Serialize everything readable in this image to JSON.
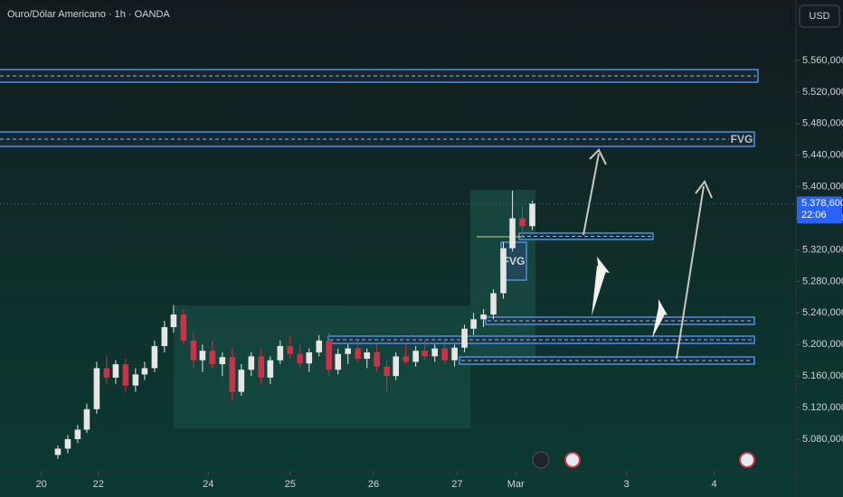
{
  "chart_data": {
    "type": "candlestick",
    "title": "Ouro/Dólar Americano · 1h · OANDA",
    "currency": "USD",
    "up_color": "#e6e6e6",
    "down_color": "#c93248",
    "grid": false,
    "xlim": [
      0,
      9.63
    ],
    "xticks": [
      {
        "value": 0.5,
        "label": "20"
      },
      {
        "value": 1.19,
        "label": "22"
      },
      {
        "value": 2.52,
        "label": "24"
      },
      {
        "value": 3.51,
        "label": "25"
      },
      {
        "value": 4.52,
        "label": "26"
      },
      {
        "value": 5.53,
        "label": "27"
      },
      {
        "value": 6.24,
        "label": "Mar"
      },
      {
        "value": 7.58,
        "label": "3"
      },
      {
        "value": 8.64,
        "label": "4"
      }
    ],
    "ylim": [
      5.04,
      5.62
    ],
    "yticks": [
      {
        "value": 5.08,
        "label": "5.080,000"
      },
      {
        "value": 5.12,
        "label": "5.120,000"
      },
      {
        "value": 5.16,
        "label": "5.160,000"
      },
      {
        "value": 5.2,
        "label": "5.200,000"
      },
      {
        "value": 5.24,
        "label": "5.240,000"
      },
      {
        "value": 5.28,
        "label": "5.280,000"
      },
      {
        "value": 5.32,
        "label": "5.320,000"
      },
      {
        "value": 5.36,
        "label": "5.360,000"
      },
      {
        "value": 5.4,
        "label": "5.400,000"
      },
      {
        "value": 5.44,
        "label": "5.440,000"
      },
      {
        "value": 5.48,
        "label": "5.480,000"
      },
      {
        "value": 5.52,
        "label": "5.520,000"
      },
      {
        "value": 5.56,
        "label": "5.560,000"
      }
    ],
    "last_price": {
      "value": 5.3786,
      "label": "5.378,600"
    },
    "countdown": "22:06",
    "annotations": [
      "FVG",
      "FVG"
    ],
    "x": [
      0.7,
      0.82,
      0.94,
      1.05,
      1.17,
      1.29,
      1.4,
      1.52,
      1.64,
      1.75,
      1.87,
      1.99,
      2.1,
      2.22,
      2.34,
      2.45,
      2.57,
      2.69,
      2.81,
      2.92,
      3.04,
      3.16,
      3.27,
      3.39,
      3.51,
      3.63,
      3.74,
      3.86,
      3.98,
      4.09,
      4.21,
      4.33,
      4.44,
      4.56,
      4.68,
      4.79,
      4.91,
      5.03,
      5.14,
      5.26,
      5.38,
      5.5,
      5.62,
      5.73,
      5.85,
      5.97,
      6.09,
      6.2,
      6.32,
      6.44
    ],
    "open": [
      5.06,
      5.068,
      5.08,
      5.092,
      5.118,
      5.17,
      5.158,
      5.175,
      5.148,
      5.162,
      5.17,
      5.198,
      5.222,
      5.238,
      5.205,
      5.18,
      5.192,
      5.175,
      5.184,
      5.14,
      5.168,
      5.185,
      5.158,
      5.18,
      5.198,
      5.188,
      5.176,
      5.19,
      5.205,
      5.168,
      5.188,
      5.195,
      5.182,
      5.19,
      5.172,
      5.16,
      5.185,
      5.178,
      5.192,
      5.185,
      5.195,
      5.18,
      5.196,
      5.22,
      5.232,
      5.238,
      5.265,
      5.322,
      5.36,
      5.35
    ],
    "high": [
      5.072,
      5.085,
      5.098,
      5.125,
      5.178,
      5.185,
      5.18,
      5.182,
      5.17,
      5.178,
      5.205,
      5.23,
      5.25,
      5.245,
      5.215,
      5.2,
      5.205,
      5.19,
      5.195,
      5.175,
      5.19,
      5.195,
      5.185,
      5.205,
      5.21,
      5.2,
      5.195,
      5.212,
      5.215,
      5.195,
      5.2,
      5.205,
      5.195,
      5.2,
      5.18,
      5.19,
      5.2,
      5.198,
      5.205,
      5.2,
      5.205,
      5.2,
      5.225,
      5.24,
      5.245,
      5.27,
      5.33,
      5.395,
      5.375,
      5.382
    ],
    "low": [
      5.055,
      5.062,
      5.075,
      5.088,
      5.112,
      5.15,
      5.15,
      5.14,
      5.14,
      5.155,
      5.165,
      5.19,
      5.215,
      5.2,
      5.17,
      5.165,
      5.17,
      5.16,
      5.128,
      5.135,
      5.16,
      5.15,
      5.15,
      5.175,
      5.182,
      5.17,
      5.165,
      5.185,
      5.16,
      5.162,
      5.175,
      5.178,
      5.17,
      5.165,
      5.14,
      5.155,
      5.175,
      5.172,
      5.18,
      5.178,
      5.175,
      5.172,
      5.19,
      5.212,
      5.222,
      5.232,
      5.258,
      5.318,
      5.335,
      5.345
    ],
    "close": [
      5.068,
      5.08,
      5.092,
      5.118,
      5.17,
      5.158,
      5.175,
      5.148,
      5.162,
      5.17,
      5.198,
      5.222,
      5.238,
      5.205,
      5.18,
      5.192,
      5.175,
      5.184,
      5.14,
      5.168,
      5.185,
      5.158,
      5.18,
      5.198,
      5.188,
      5.176,
      5.19,
      5.205,
      5.168,
      5.188,
      5.195,
      5.182,
      5.19,
      5.172,
      5.16,
      5.185,
      5.178,
      5.192,
      5.185,
      5.195,
      5.18,
      5.196,
      5.22,
      5.232,
      5.238,
      5.265,
      5.322,
      5.36,
      5.35,
      5.3786
    ]
  }
}
